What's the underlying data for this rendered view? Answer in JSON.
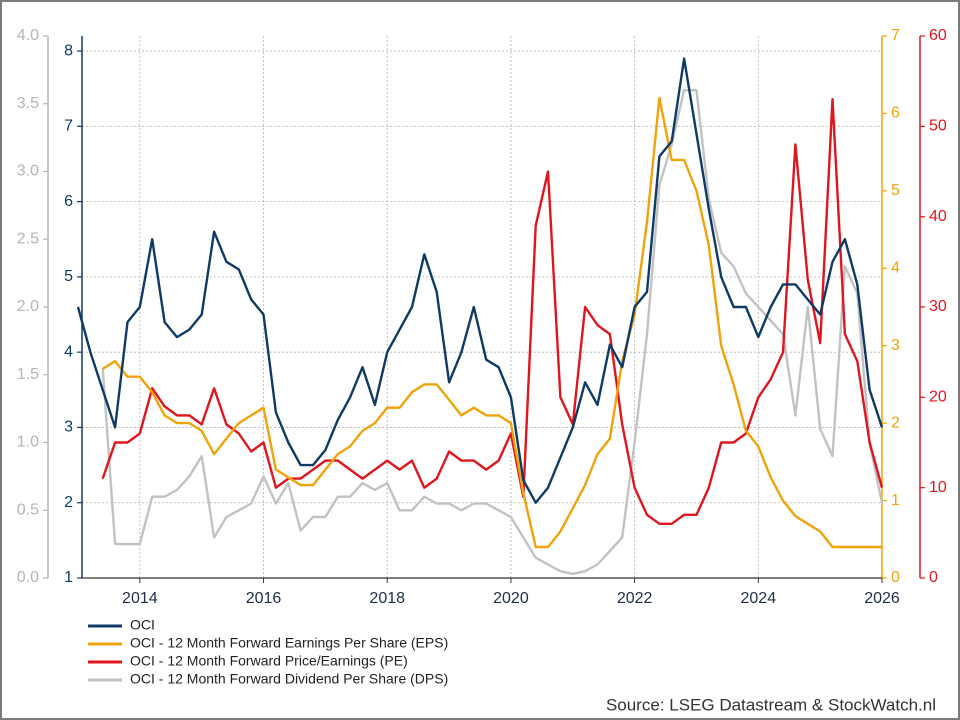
{
  "chart_data": {
    "type": "line",
    "source": "Source: LSEG Datastream & StockWatch.nl",
    "x": [
      2013.0,
      2013.2,
      2013.4,
      2013.6,
      2013.8,
      2014.0,
      2014.2,
      2014.4,
      2014.6,
      2014.8,
      2015.0,
      2015.2,
      2015.4,
      2015.6,
      2015.8,
      2016.0,
      2016.2,
      2016.4,
      2016.6,
      2016.8,
      2017.0,
      2017.2,
      2017.4,
      2017.6,
      2017.8,
      2018.0,
      2018.2,
      2018.4,
      2018.6,
      2018.8,
      2019.0,
      2019.2,
      2019.4,
      2019.6,
      2019.8,
      2020.0,
      2020.2,
      2020.4,
      2020.6,
      2020.8,
      2021.0,
      2021.2,
      2021.4,
      2021.6,
      2021.8,
      2022.0,
      2022.2,
      2022.4,
      2022.6,
      2022.8,
      2023.0,
      2023.2,
      2023.4,
      2023.6,
      2023.8,
      2024.0,
      2024.2,
      2024.4,
      2024.6,
      2024.8,
      2025.0,
      2025.2,
      2025.4,
      2025.6,
      2025.8,
      2026.0
    ],
    "xlim": [
      2013,
      2026
    ],
    "xticks": [
      2014,
      2016,
      2018,
      2020,
      2022,
      2024,
      2026
    ],
    "ylim": [
      1,
      8.2
    ],
    "yticks": [
      1,
      2,
      3,
      4,
      5,
      6,
      7,
      8
    ],
    "y2lim": [
      0,
      7
    ],
    "y2ticks": [
      0,
      1,
      2,
      3,
      4,
      5,
      6,
      7
    ],
    "y3lim": [
      0,
      4
    ],
    "y3ticks": [
      {
        "value": 0,
        "label": "0.0"
      },
      0.5,
      {
        "value": 1,
        "label": "1.0"
      },
      1.5,
      {
        "value": 2,
        "label": "2.0"
      },
      2.5,
      {
        "value": 3,
        "label": "3.0"
      },
      3.5,
      {
        "value": 4,
        "label": "4.0"
      }
    ],
    "y4lim": [
      0,
      60
    ],
    "y4ticks": [
      0,
      10,
      20,
      30,
      40,
      50,
      60
    ],
    "grid": true,
    "series": [
      {
        "name": "OCI",
        "color": "#0f3a65",
        "axis": "y",
        "values": [
          4.6,
          4.0,
          3.5,
          3.0,
          4.4,
          4.6,
          5.5,
          4.4,
          4.2,
          4.3,
          4.5,
          5.6,
          5.2,
          5.1,
          4.7,
          4.5,
          3.2,
          2.8,
          2.5,
          2.5,
          2.7,
          3.1,
          3.4,
          3.8,
          3.3,
          4.0,
          4.3,
          4.6,
          5.3,
          4.8,
          3.6,
          4.0,
          4.6,
          3.9,
          3.8,
          3.4,
          2.3,
          2.0,
          2.2,
          2.6,
          3.0,
          3.6,
          3.3,
          4.1,
          3.8,
          4.6,
          4.8,
          6.6,
          6.8,
          7.9,
          6.9,
          5.9,
          5.0,
          4.6,
          4.6,
          4.2,
          4.6,
          4.9,
          4.9,
          4.7,
          4.5,
          5.2,
          5.5,
          4.9,
          3.5,
          3.0
        ]
      },
      {
        "name": "OCI - 12 Month Forward Earnings Per Share (EPS)",
        "color": "#f0a30a",
        "axis": "y2",
        "values": [
          null,
          null,
          2.7,
          2.8,
          2.6,
          2.6,
          2.4,
          2.1,
          2.0,
          2.0,
          1.9,
          1.6,
          1.8,
          2.0,
          2.1,
          2.2,
          1.4,
          1.3,
          1.2,
          1.2,
          1.4,
          1.6,
          1.7,
          1.9,
          2.0,
          2.2,
          2.2,
          2.4,
          2.5,
          2.5,
          2.3,
          2.1,
          2.2,
          2.1,
          2.1,
          2.0,
          1.1,
          0.4,
          0.4,
          0.6,
          0.9,
          1.2,
          1.6,
          1.8,
          2.8,
          3.4,
          4.6,
          6.2,
          5.4,
          5.4,
          5.0,
          4.3,
          3.0,
          2.5,
          1.9,
          1.7,
          1.3,
          1.0,
          0.8,
          0.7,
          0.6,
          0.4,
          0.4,
          0.4,
          0.4,
          0.4
        ]
      },
      {
        "name": "OCI - 12 Month Forward Price/Earnings (PE)",
        "color": "#e0161e",
        "axis": "y4",
        "values": [
          null,
          null,
          11,
          15,
          15,
          16,
          21,
          19,
          18,
          18,
          17,
          21,
          17,
          16,
          14,
          15,
          10,
          11,
          11,
          12,
          13,
          13,
          12,
          11,
          12,
          13,
          12,
          13,
          10,
          11,
          14,
          13,
          13,
          12,
          13,
          16,
          9,
          39,
          45,
          20,
          17,
          30,
          28,
          27,
          17,
          10,
          7,
          6,
          6,
          7,
          7,
          10,
          15,
          15,
          16,
          20,
          22,
          25,
          48,
          33,
          26,
          53,
          27,
          24,
          15,
          10
        ]
      },
      {
        "name": "OCI - 12 Month Forward Dividend Per Share (DPS)",
        "color": "#c2c2c2",
        "axis": "y3",
        "values": [
          null,
          null,
          1.55,
          0.25,
          0.25,
          0.25,
          0.6,
          0.6,
          0.65,
          0.75,
          0.9,
          0.3,
          0.45,
          0.5,
          0.55,
          0.75,
          0.55,
          0.7,
          0.35,
          0.45,
          0.45,
          0.6,
          0.6,
          0.7,
          0.65,
          0.7,
          0.5,
          0.5,
          0.6,
          0.55,
          0.55,
          0.5,
          0.55,
          0.55,
          0.5,
          0.45,
          0.3,
          0.15,
          0.1,
          0.05,
          0.03,
          0.05,
          0.1,
          0.2,
          0.3,
          1.0,
          1.8,
          2.9,
          3.2,
          3.6,
          3.6,
          2.8,
          2.4,
          2.3,
          2.1,
          2.0,
          1.9,
          1.8,
          1.2,
          2.0,
          1.1,
          0.9,
          2.3,
          2.1,
          1.0,
          0.55
        ]
      }
    ]
  }
}
